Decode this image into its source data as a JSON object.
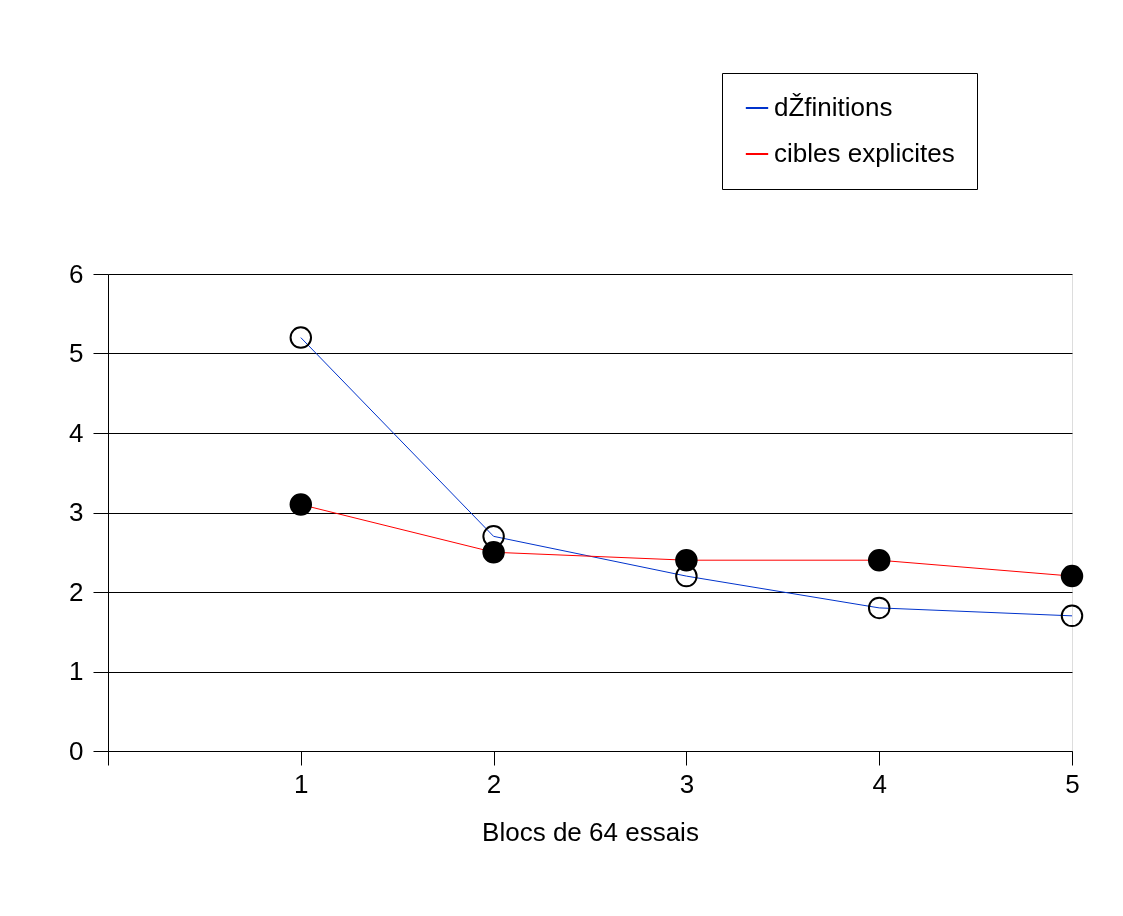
{
  "chart_data": {
    "type": "line",
    "xlabel": "Blocs de 64 essais",
    "x": [
      1,
      2,
      3,
      4,
      5
    ],
    "series": [
      {
        "name": "dŽfinitions",
        "color": "#0033cc",
        "values": [
          5.2,
          2.7,
          2.2,
          1.8,
          1.7
        ]
      },
      {
        "name": "cibles explicites",
        "color": "#ff0000",
        "values": [
          3.1,
          2.5,
          2.4,
          2.4,
          2.2
        ]
      }
    ],
    "xlim": [
      0,
      5
    ],
    "xticks": [
      {
        "value": 0,
        "label": null
      },
      1,
      2,
      3,
      4,
      5
    ],
    "ylim": [
      0,
      6
    ],
    "yticks": [
      0,
      1,
      2,
      3,
      4,
      5,
      6
    ],
    "grid": "y",
    "legend": "top right",
    "marker": "circle",
    "line_style": "solid"
  }
}
